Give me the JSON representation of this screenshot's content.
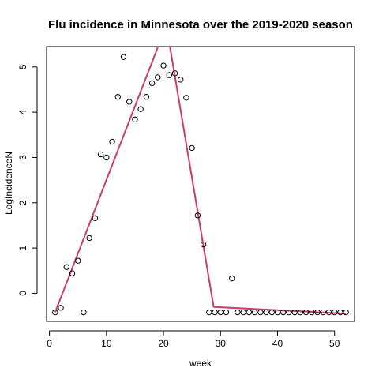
{
  "chart_data": {
    "type": "scatter",
    "title": "Flu incidence in Minnesota over the 2019-2020 season",
    "xlabel": "week",
    "ylabel": "LogIncidenceN",
    "xlim": [
      -0.5,
      53.5
    ],
    "ylim": [
      -0.62,
      5.45
    ],
    "xticks": [
      0,
      10,
      20,
      30,
      40,
      50
    ],
    "yticks": [
      0,
      1,
      2,
      3,
      4,
      5
    ],
    "grid": false,
    "legend": "none",
    "points": {
      "x": [
        1,
        2,
        3,
        4,
        5,
        6,
        7,
        8,
        9,
        10,
        11,
        12,
        13,
        14,
        15,
        16,
        17,
        18,
        19,
        20,
        21,
        22,
        23,
        24,
        25,
        26,
        27,
        28,
        29,
        30,
        31,
        32,
        33,
        34,
        35,
        36,
        37,
        38,
        39,
        40,
        41,
        42,
        43,
        44,
        45,
        46,
        47,
        48,
        49,
        50,
        51,
        52
      ],
      "y": [
        -0.42,
        -0.32,
        0.58,
        0.44,
        0.72,
        -0.42,
        1.22,
        1.66,
        3.07,
        3.0,
        3.35,
        4.34,
        5.22,
        4.23,
        3.84,
        4.07,
        4.34,
        4.64,
        4.77,
        5.03,
        4.82,
        4.86,
        4.72,
        4.32,
        3.21,
        1.72,
        1.08,
        -0.42,
        -0.42,
        -0.42,
        -0.42,
        0.33,
        -0.42,
        -0.42,
        -0.42,
        -0.42,
        -0.42,
        -0.42,
        -0.42,
        -0.42,
        -0.42,
        -0.42,
        -0.42,
        -0.42,
        -0.42,
        -0.42,
        -0.42,
        -0.42,
        -0.42,
        -0.42,
        -0.42,
        -0.42
      ]
    },
    "fit": {
      "x": [
        1,
        20.5,
        28.8,
        52
      ],
      "y": [
        -0.42,
        5.92,
        -0.3,
        -0.45
      ],
      "color": "#d03a60"
    }
  }
}
